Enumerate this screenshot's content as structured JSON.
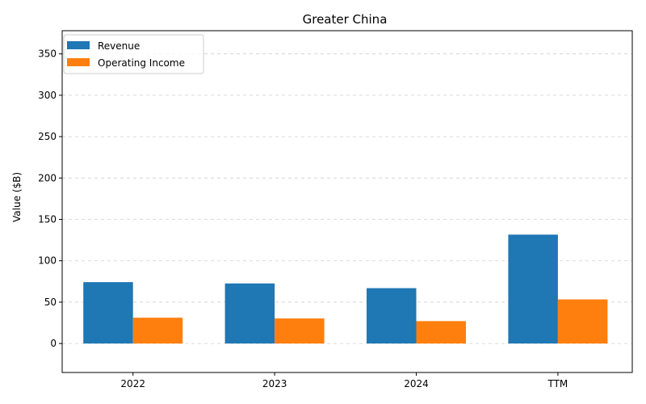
{
  "chart_data": {
    "type": "bar",
    "title": "Greater China",
    "xlabel": "",
    "ylabel": "Value ($B)",
    "categories": [
      "2022",
      "2023",
      "2024",
      "TTM"
    ],
    "series": [
      {
        "name": "Revenue",
        "color": "#1f77b4",
        "values": [
          74.2,
          72.6,
          66.9,
          131.6
        ]
      },
      {
        "name": "Operating Income",
        "color": "#ff7f0e",
        "values": [
          31.2,
          30.3,
          27.1,
          53.3
        ]
      }
    ],
    "ylim": [
      -35,
      378
    ],
    "yticks": [
      0,
      50,
      100,
      150,
      200,
      250,
      300,
      350
    ],
    "grid": "y-dashed",
    "legend_position": "top-left"
  }
}
